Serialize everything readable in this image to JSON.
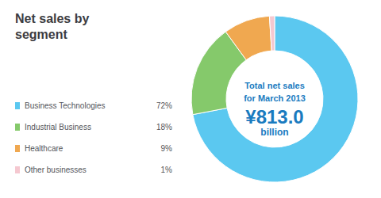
{
  "chart_data": {
    "type": "donut",
    "title": "Net sales by\nsegment",
    "categories": [
      "Business Technologies",
      "Industrial Business",
      "Healthcare",
      "Other businesses"
    ],
    "values": [
      72,
      18,
      9,
      1
    ],
    "value_labels": [
      "72%",
      "18%",
      "9%",
      "1%"
    ],
    "colors": [
      "#5bc8f0",
      "#85c96b",
      "#f0a850",
      "#f5c8d0"
    ],
    "legend": "left",
    "annotations": [
      {
        "text": "Total net sales",
        "color": "#1a7bbf"
      },
      {
        "text": "for March 2013",
        "color": "#1a7bbf"
      },
      {
        "text": "¥813.0",
        "color": "#1a7bbf"
      },
      {
        "text": "billion",
        "color": "#1a7bbf"
      }
    ]
  }
}
